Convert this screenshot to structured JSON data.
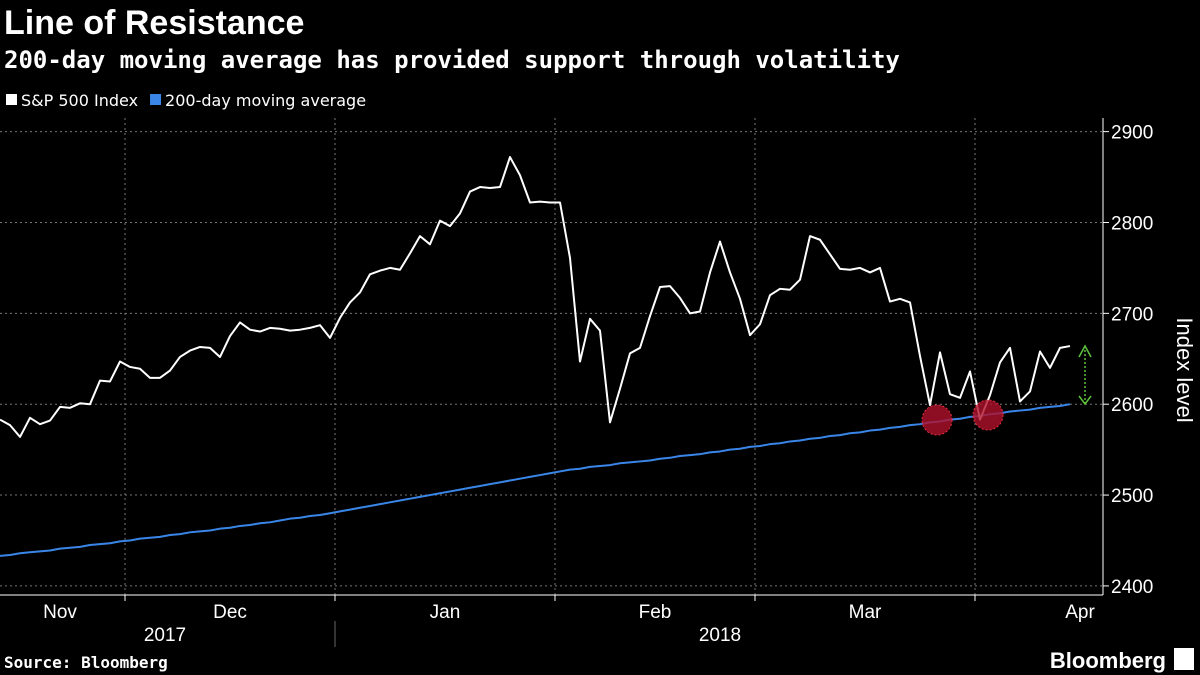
{
  "chart_data": {
    "type": "line",
    "title": "Line of Resistance",
    "subtitle": "200-day moving average has provided support through volatility",
    "y_label": "Index level",
    "source": "Source: Bloomberg",
    "brand": "Bloomberg",
    "series": [
      {
        "name": "S&P 500 Index",
        "color": "#ffffff",
        "values": [
          2583,
          2577,
          2564,
          2585,
          2578,
          2582,
          2597,
          2596,
          2601,
          2600,
          2626,
          2625,
          2647,
          2641,
          2639,
          2629,
          2629,
          2637,
          2652,
          2659,
          2663,
          2662,
          2652,
          2675,
          2690,
          2682,
          2680,
          2684,
          2683,
          2681,
          2682,
          2684,
          2687,
          2673,
          2695,
          2712,
          2723,
          2743,
          2747,
          2750,
          2748,
          2766,
          2785,
          2776,
          2802,
          2796,
          2810,
          2834,
          2839,
          2838,
          2839,
          2872,
          2852,
          2822,
          2823,
          2822,
          2822,
          2761,
          2647,
          2694,
          2681,
          2580,
          2617,
          2656,
          2662,
          2697,
          2729,
          2730,
          2717,
          2700,
          2702,
          2745,
          2779,
          2745,
          2716,
          2676,
          2688,
          2720,
          2727,
          2726,
          2737,
          2785,
          2781,
          2765,
          2749,
          2748,
          2750,
          2745,
          2750,
          2713,
          2716,
          2712,
          2653,
          2599,
          2657,
          2611,
          2607,
          2636,
          2583,
          2610,
          2646,
          2662,
          2603,
          2614,
          2658,
          2640,
          2662,
          2664
        ]
      },
      {
        "name": "200-day moving average",
        "color": "#3a86e8",
        "values": [
          2433,
          2434,
          2436,
          2437,
          2438,
          2439,
          2441,
          2442,
          2443,
          2445,
          2446,
          2447,
          2449,
          2450,
          2452,
          2453,
          2454,
          2456,
          2457,
          2459,
          2460,
          2461,
          2463,
          2464,
          2466,
          2467,
          2469,
          2470,
          2472,
          2474,
          2475,
          2477,
          2478,
          2480,
          2482,
          2484,
          2486,
          2488,
          2490,
          2492,
          2494,
          2496,
          2498,
          2500,
          2502,
          2504,
          2506,
          2508,
          2510,
          2512,
          2514,
          2516,
          2518,
          2520,
          2522,
          2524,
          2526,
          2528,
          2529,
          2531,
          2532,
          2533,
          2535,
          2536,
          2537,
          2538,
          2540,
          2541,
          2543,
          2544,
          2545,
          2547,
          2548,
          2550,
          2551,
          2553,
          2554,
          2556,
          2557,
          2559,
          2560,
          2562,
          2563,
          2565,
          2566,
          2568,
          2569,
          2571,
          2572,
          2574,
          2575,
          2577,
          2578,
          2580,
          2581,
          2583,
          2584,
          2586,
          2587,
          2589,
          2590,
          2592,
          2593,
          2594,
          2596,
          2597,
          2598,
          2600
        ]
      }
    ],
    "xlim": [
      0,
      110
    ],
    "xticks": [
      {
        "value": 6,
        "label": "Nov"
      },
      {
        "value": 23,
        "label": "Dec"
      },
      {
        "value": 44.5,
        "label": "Jan"
      },
      {
        "value": 65.5,
        "label": "Feb"
      },
      {
        "value": 86.5,
        "label": "Mar"
      },
      {
        "value": 108,
        "label": "Apr"
      }
    ],
    "xgrid": [
      12.5,
      33.5,
      55.5,
      75.5,
      97.5
    ],
    "years": [
      {
        "value": 16.5,
        "label": "2017"
      },
      {
        "value": 72,
        "label": "2018"
      }
    ],
    "year_break": 33.5,
    "ylim": [
      2390,
      2915
    ],
    "yticks": [
      2400,
      2500,
      2600,
      2700,
      2800,
      2900
    ],
    "grid": true
  }
}
